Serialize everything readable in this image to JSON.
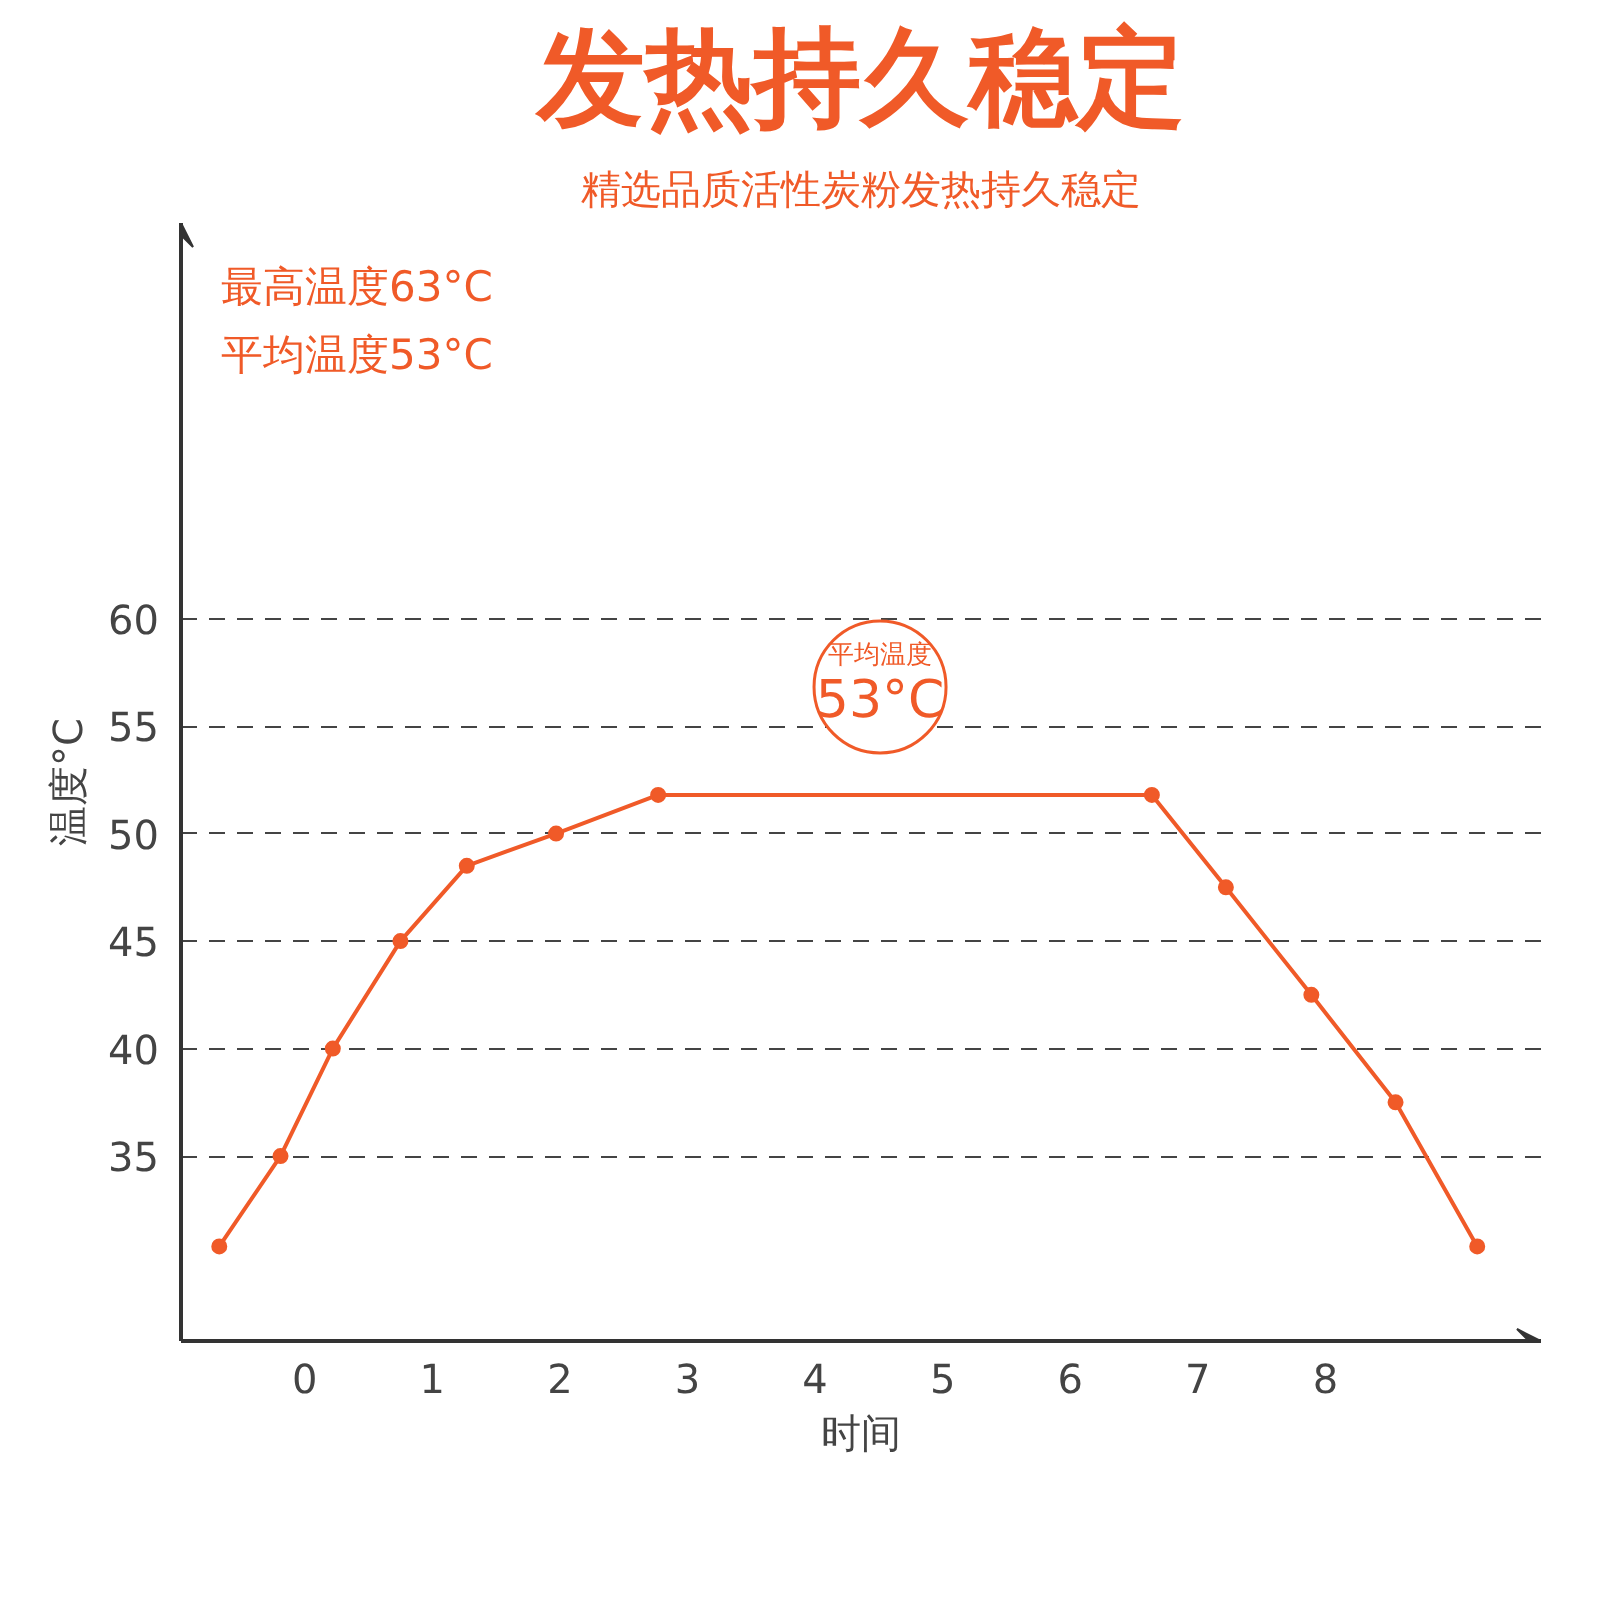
{
  "chart_data": {
    "type": "line",
    "title": "发热持久稳定",
    "subtitle": "精选品质活性炭粉发热持久稳定",
    "xlabel": "时间",
    "ylabel": "温度°C",
    "x": [
      -0.67,
      -0.19,
      0.22,
      0.75,
      1.27,
      1.97,
      2.77,
      6.64,
      7.22,
      7.89,
      8.55,
      9.19
    ],
    "series": [
      {
        "color": "#f05a28",
        "values": [
          30.8,
          35,
          40,
          45,
          48.5,
          50,
          51.8,
          51.8,
          47.5,
          42.5,
          37.5,
          30.8
        ]
      }
    ],
    "xlim": [
      -0.97,
      9.69
    ],
    "xticks": [
      0,
      1,
      2,
      3,
      4,
      5,
      6,
      7,
      8
    ],
    "ylim": [
      26.4,
      78.4
    ],
    "yticks": [
      35,
      40,
      45,
      50,
      55,
      60
    ],
    "grid": "y",
    "marker": "circle",
    "line_style": "solid",
    "annotations": [
      "最高温度63°C",
      "平均温度53°C",
      "平均温度\n53°C"
    ]
  }
}
